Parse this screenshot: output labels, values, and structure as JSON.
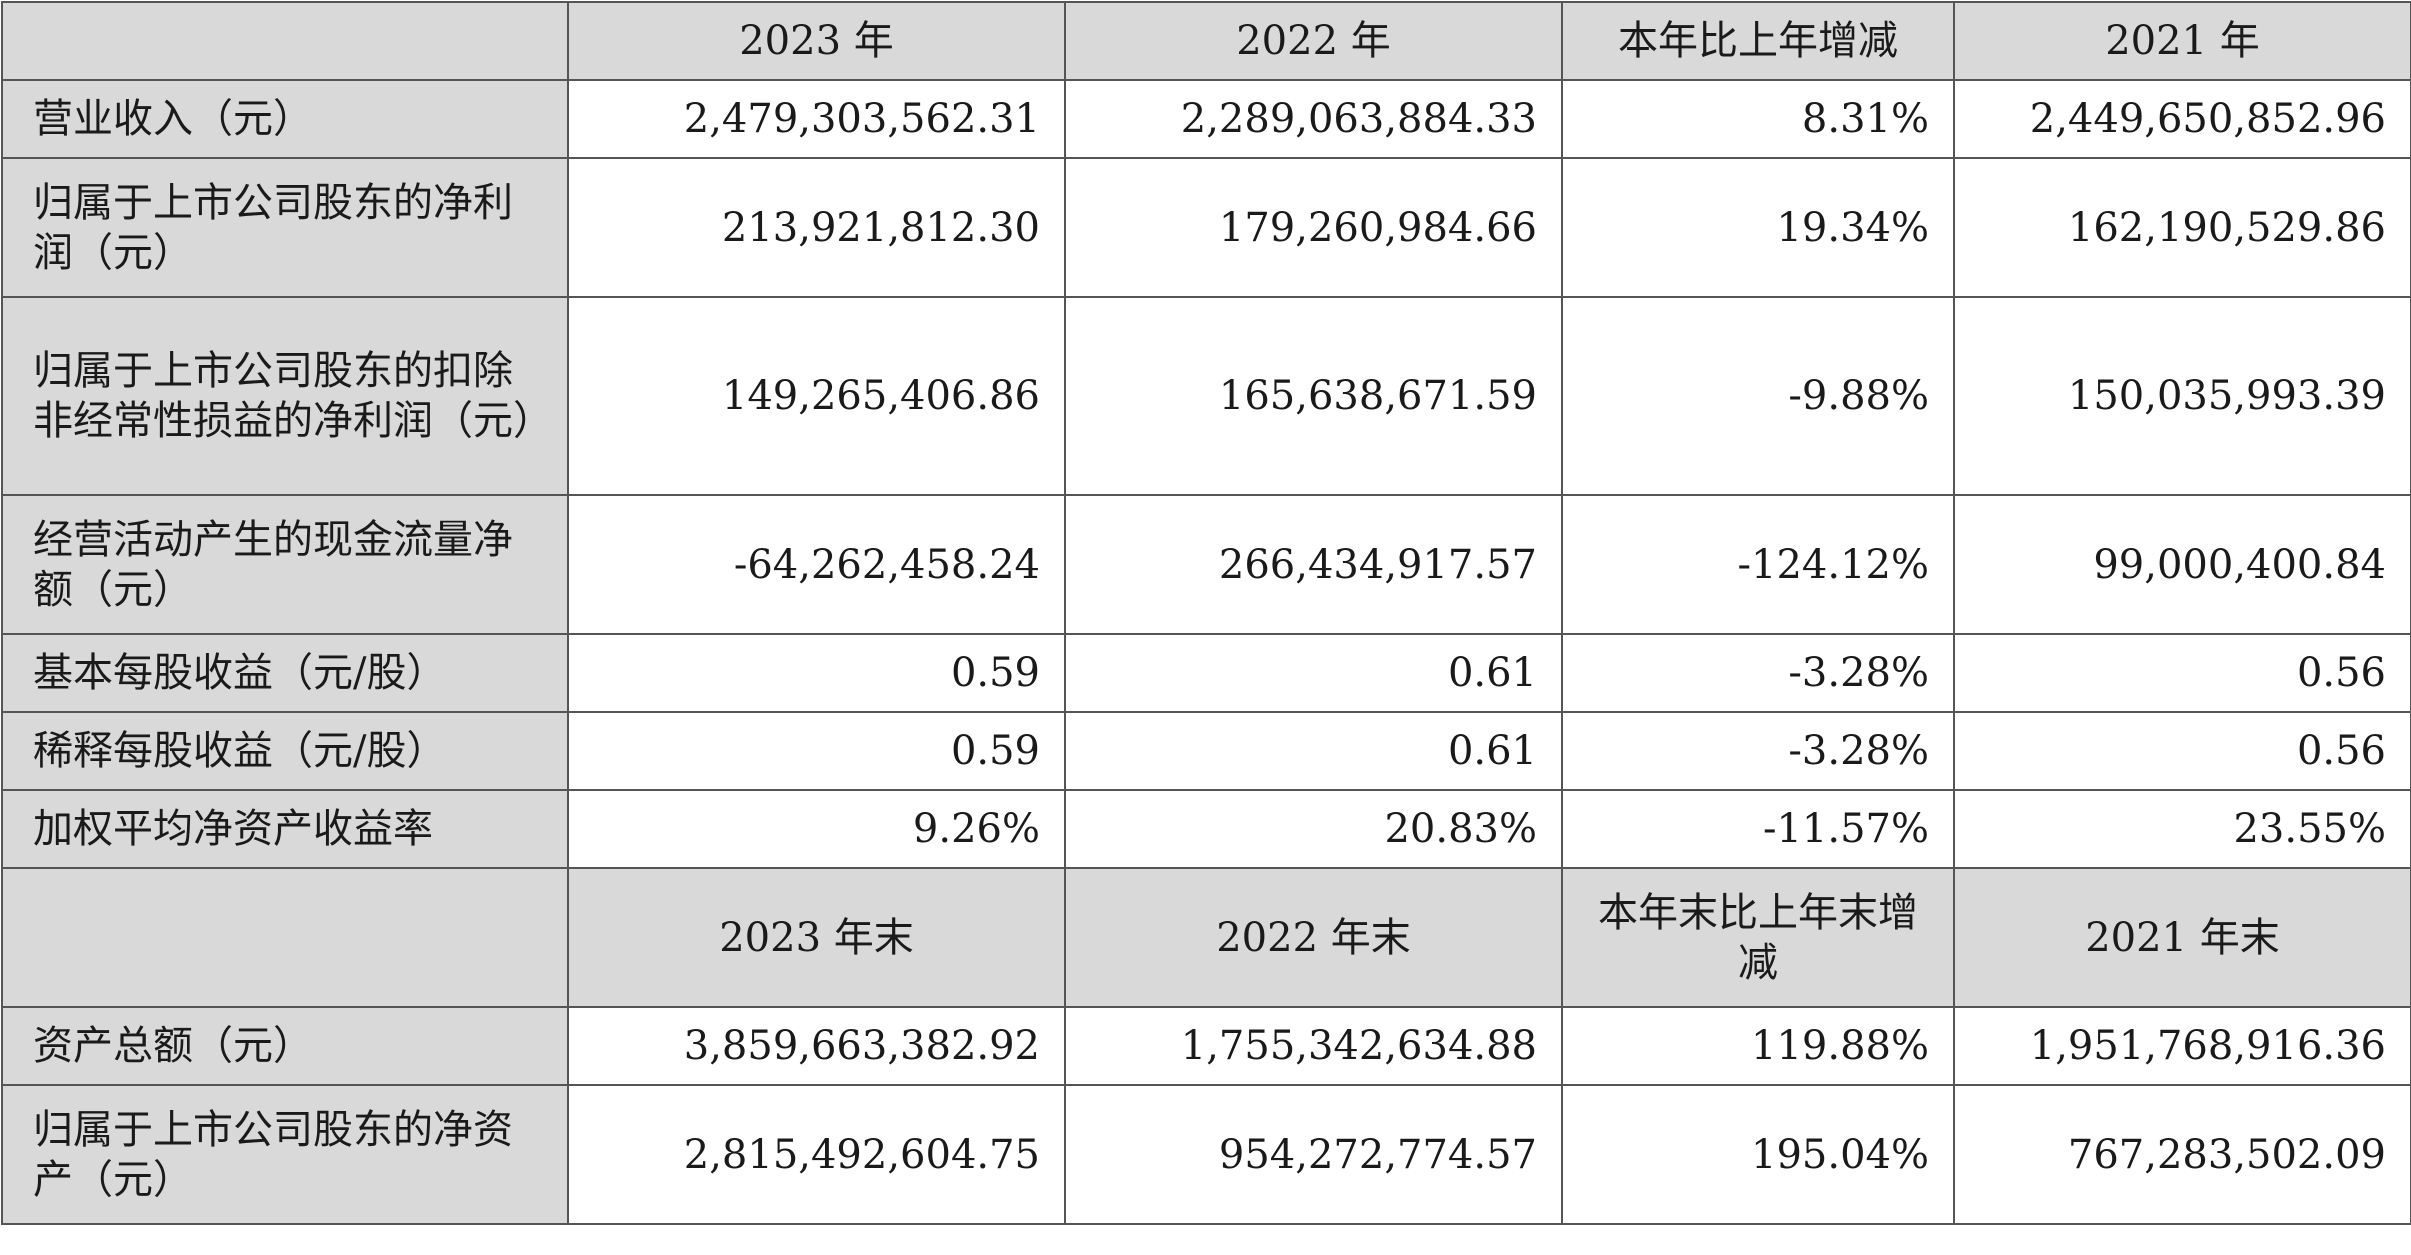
{
  "header1": [
    "",
    "2023 年",
    "2022 年",
    "本年比上年增减",
    "2021 年"
  ],
  "rows1": [
    {
      "label": "营业收入（元）",
      "values": [
        "2,479,303,562.31",
        "2,289,063,884.33",
        "8.31%",
        "2,449,650,852.96"
      ]
    },
    {
      "label": "归属于上市公司股东的净利润（元）",
      "values": [
        "213,921,812.30",
        "179,260,984.66",
        "19.34%",
        "162,190,529.86"
      ]
    },
    {
      "label": "归属于上市公司股东的扣除非经常性损益的净利润（元）",
      "values": [
        "149,265,406.86",
        "165,638,671.59",
        "-9.88%",
        "150,035,993.39"
      ]
    },
    {
      "label": "经营活动产生的现金流量净额（元）",
      "values": [
        "-64,262,458.24",
        "266,434,917.57",
        "-124.12%",
        "99,000,400.84"
      ]
    },
    {
      "label": "基本每股收益（元/股）",
      "values": [
        "0.59",
        "0.61",
        "-3.28%",
        "0.56"
      ]
    },
    {
      "label": "稀释每股收益（元/股）",
      "values": [
        "0.59",
        "0.61",
        "-3.28%",
        "0.56"
      ]
    },
    {
      "label": "加权平均净资产收益率",
      "values": [
        "9.26%",
        "20.83%",
        "-11.57%",
        "23.55%"
      ]
    }
  ],
  "header2": [
    "",
    "2023 年末",
    "2022 年末",
    "本年末比上年末增减",
    "2021 年末"
  ],
  "rows2": [
    {
      "label": "资产总额（元）",
      "values": [
        "3,859,663,382.92",
        "1,755,342,634.88",
        "119.88%",
        "1,951,768,916.36"
      ]
    },
    {
      "label": "归属于上市公司股东的净资产（元）",
      "values": [
        "2,815,492,604.75",
        "954,272,774.57",
        "195.04%",
        "767,283,502.09"
      ]
    }
  ]
}
